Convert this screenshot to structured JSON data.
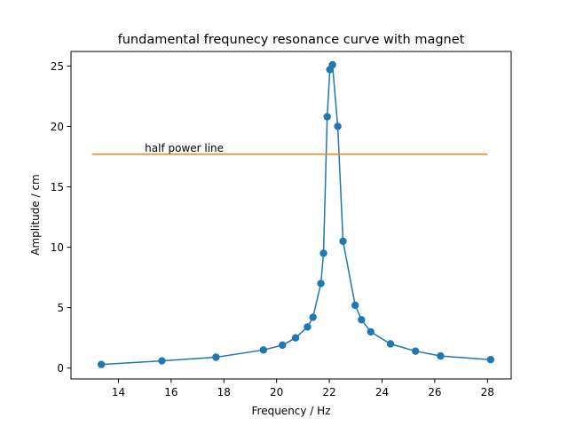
{
  "chart_data": {
    "type": "line",
    "title": "fundamental frequnecy resonance curve with magnet",
    "xlabel": "Frequency / Hz",
    "ylabel": "Amplitude / cm",
    "xlim": [
      12.2,
      28.9
    ],
    "ylim": [
      -0.9,
      26.2
    ],
    "xticks": [
      14,
      16,
      18,
      20,
      22,
      24,
      26,
      28
    ],
    "yticks": [
      0,
      5,
      10,
      15,
      20,
      25
    ],
    "grid": false,
    "series": [
      {
        "color": "#1f77b4",
        "marker": "circle",
        "x": [
          13.35,
          15.65,
          17.7,
          19.5,
          20.22,
          20.72,
          21.17,
          21.38,
          21.68,
          21.78,
          21.92,
          22.02,
          22.12,
          22.32,
          22.52,
          22.98,
          23.22,
          23.57,
          24.32,
          25.27,
          26.22,
          28.12
        ],
        "y": [
          0.3,
          0.6,
          0.9,
          1.5,
          1.9,
          2.5,
          3.4,
          4.2,
          7.0,
          9.5,
          20.8,
          24.7,
          25.1,
          20.0,
          10.5,
          5.2,
          4.0,
          3.0,
          2.0,
          1.4,
          1.0,
          0.7
        ]
      },
      {
        "color": "#ff7f0e",
        "marker": "none",
        "x": [
          13.0,
          28.0
        ],
        "y": [
          17.7,
          17.7
        ]
      }
    ],
    "annotations": [
      {
        "text": "half power line",
        "x": 15.0,
        "y": 17.9
      }
    ]
  }
}
